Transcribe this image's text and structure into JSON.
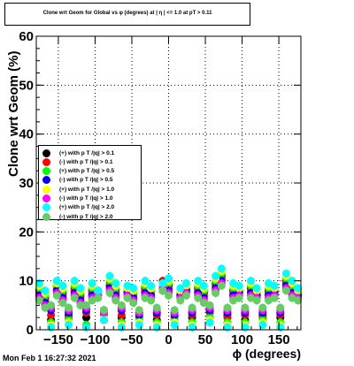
{
  "chart_data": {
    "type": "scatter",
    "title": "Clone wrt Geom for Global vs φ (degrees) at | η | <= 1.0 at pT > 0.11",
    "xlabel": "ϕ (degrees)",
    "ylabel": "Clone wrt  Geom (%)",
    "xlim": [
      -180,
      180
    ],
    "ylim": [
      0,
      60
    ],
    "x_ticks": [
      "−150",
      "−100",
      "−50",
      "0",
      "50",
      "100",
      "150"
    ],
    "y_ticks": [
      "0",
      "10",
      "20",
      "30",
      "40",
      "50",
      "60"
    ],
    "grid": true,
    "legend_position": "left-middle",
    "x": [
      -176,
      -168,
      -160,
      -152,
      -144,
      -136,
      -128,
      -120,
      -112,
      -104,
      -96,
      -88,
      -80,
      -72,
      -64,
      -56,
      -48,
      -40,
      -32,
      -24,
      -16,
      -8,
      0,
      8,
      16,
      24,
      32,
      40,
      48,
      56,
      64,
      72,
      80,
      88,
      96,
      104,
      112,
      120,
      128,
      136,
      144,
      152,
      160,
      168,
      176
    ],
    "series": [
      {
        "name": "(+) with p T /|q| > 0.1",
        "color": "#000000",
        "values": [
          8.0,
          6.5,
          2.0,
          9.0,
          7.5,
          3.0,
          8.5,
          7.0,
          2.5,
          8.0,
          7.5,
          4.0,
          9.0,
          8.0,
          2.5,
          7.5,
          8.0,
          3.5,
          8.5,
          7.0,
          2.0,
          8.0,
          9.0,
          3.5,
          7.0,
          8.0,
          2.5,
          8.5,
          7.5,
          4.0,
          9.5,
          11.0,
          3.0,
          8.0,
          7.5,
          2.0,
          8.5,
          7.0,
          3.0,
          8.0,
          7.5,
          2.5,
          10.0,
          8.5,
          7.0
        ]
      },
      {
        "name": "(-) with p T /|q| > 0.1",
        "color": "#ff0000",
        "values": [
          7.5,
          6.0,
          3.0,
          8.5,
          7.0,
          2.5,
          8.0,
          6.5,
          3.5,
          7.5,
          8.0,
          2.0,
          9.5,
          7.5,
          3.0,
          8.0,
          7.0,
          2.5,
          8.0,
          7.5,
          3.0,
          10.0,
          8.5,
          2.5,
          7.5,
          8.5,
          3.0,
          8.0,
          7.0,
          3.5,
          9.0,
          10.5,
          2.5,
          7.5,
          8.0,
          3.0,
          8.0,
          7.5,
          2.5,
          7.5,
          8.0,
          3.0,
          9.5,
          8.0,
          7.5
        ]
      },
      {
        "name": "(+) with p T /|q| > 0.5",
        "color": "#00ff00",
        "values": [
          8.5,
          7.0,
          1.5,
          9.0,
          8.0,
          2.0,
          9.0,
          7.5,
          1.0,
          8.5,
          7.0,
          3.0,
          10.0,
          8.5,
          1.5,
          8.0,
          7.5,
          2.0,
          9.0,
          8.0,
          1.5,
          8.5,
          9.5,
          2.0,
          7.5,
          8.5,
          1.5,
          9.0,
          8.0,
          2.5,
          10.0,
          11.5,
          1.5,
          8.5,
          8.0,
          1.5,
          9.0,
          7.5,
          2.0,
          8.5,
          8.0,
          1.5,
          10.5,
          9.0,
          7.5
        ]
      },
      {
        "name": "(-) with p T /|q| > 0.5",
        "color": "#0000ff",
        "values": [
          7.0,
          5.5,
          4.0,
          8.0,
          6.5,
          3.5,
          7.5,
          6.0,
          4.0,
          7.0,
          7.5,
          3.0,
          8.5,
          7.0,
          4.0,
          7.5,
          6.5,
          3.0,
          7.5,
          7.0,
          3.5,
          9.0,
          8.0,
          3.0,
          7.0,
          8.0,
          3.5,
          7.5,
          6.5,
          4.0,
          8.5,
          10.0,
          3.5,
          7.0,
          7.5,
          3.5,
          7.5,
          7.0,
          3.5,
          7.0,
          7.5,
          3.5,
          9.0,
          7.5,
          7.0
        ]
      },
      {
        "name": "(+) with p T /|q| > 1.0",
        "color": "#ffff00",
        "values": [
          9.0,
          7.5,
          1.0,
          9.5,
          8.5,
          1.5,
          9.5,
          8.0,
          0.5,
          9.0,
          7.5,
          2.5,
          10.5,
          9.0,
          1.0,
          8.5,
          8.0,
          1.5,
          9.5,
          8.5,
          1.0,
          9.0,
          10.0,
          1.5,
          8.0,
          9.0,
          1.0,
          9.5,
          8.5,
          2.0,
          10.5,
          12.0,
          1.0,
          9.0,
          8.5,
          1.0,
          9.5,
          8.0,
          1.5,
          9.0,
          8.5,
          1.0,
          11.0,
          9.5,
          8.0
        ]
      },
      {
        "name": "(-) with p T /|q| > 1.0",
        "color": "#ff00ff",
        "values": [
          6.5,
          5.0,
          4.5,
          7.5,
          6.0,
          4.0,
          7.0,
          5.5,
          4.5,
          6.5,
          7.0,
          3.5,
          8.0,
          6.5,
          4.5,
          7.0,
          6.0,
          3.5,
          7.0,
          6.5,
          4.0,
          8.5,
          7.5,
          3.5,
          6.5,
          7.5,
          4.0,
          7.0,
          6.0,
          4.5,
          8.0,
          9.5,
          4.0,
          6.5,
          7.0,
          4.0,
          7.0,
          6.5,
          4.0,
          6.5,
          7.0,
          4.0,
          8.5,
          7.0,
          6.5
        ]
      },
      {
        "name": "(+) with p T /|q| > 2.0",
        "color": "#00ffff",
        "values": [
          9.5,
          8.0,
          0.5,
          10.0,
          9.0,
          1.0,
          10.0,
          8.5,
          0.5,
          9.5,
          8.0,
          2.0,
          11.0,
          9.5,
          0.5,
          9.0,
          8.5,
          1.0,
          10.0,
          9.0,
          0.5,
          9.5,
          10.5,
          1.0,
          8.5,
          9.5,
          0.5,
          10.0,
          9.0,
          1.5,
          11.0,
          12.5,
          0.5,
          9.5,
          9.0,
          0.5,
          10.0,
          8.5,
          1.0,
          9.5,
          9.0,
          0.5,
          11.5,
          10.0,
          8.5
        ]
      },
      {
        "name": "(-) with p T /|q| > 2.0",
        "color": "#66cc66",
        "values": [
          6.0,
          4.5,
          5.0,
          7.0,
          5.5,
          4.5,
          6.5,
          5.0,
          5.0,
          6.0,
          6.5,
          4.0,
          7.5,
          6.0,
          5.0,
          6.5,
          5.5,
          4.0,
          6.5,
          6.0,
          4.5,
          8.0,
          7.0,
          4.0,
          6.0,
          7.0,
          4.5,
          6.5,
          5.5,
          5.0,
          7.5,
          9.0,
          4.5,
          6.0,
          6.5,
          4.5,
          6.5,
          6.0,
          4.5,
          6.0,
          6.5,
          4.5,
          8.0,
          6.5,
          6.0
        ]
      }
    ]
  },
  "footer": {
    "datestamp": "Mon Feb  1 16:27:32 2021"
  }
}
